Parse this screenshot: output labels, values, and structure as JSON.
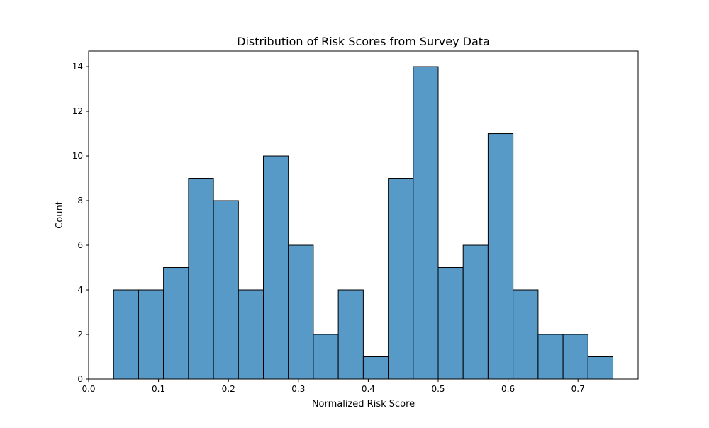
{
  "chart_data": {
    "type": "bar",
    "title": "Distribution of Risk Scores from Survey Data",
    "xlabel": "Normalized Risk Score",
    "ylabel": "Count",
    "xlim": [
      0.0,
      0.786
    ],
    "ylim": [
      0,
      14.7
    ],
    "grid": false,
    "bar_color": "#5799c7",
    "edge_color": "#000000",
    "bin_width": 0.0357,
    "bins": [
      {
        "x0": 0.0357,
        "x1": 0.0714,
        "count": 4
      },
      {
        "x0": 0.0714,
        "x1": 0.1071,
        "count": 4
      },
      {
        "x0": 0.1071,
        "x1": 0.1429,
        "count": 5
      },
      {
        "x0": 0.1429,
        "x1": 0.1786,
        "count": 9
      },
      {
        "x0": 0.1786,
        "x1": 0.2143,
        "count": 8
      },
      {
        "x0": 0.2143,
        "x1": 0.25,
        "count": 4
      },
      {
        "x0": 0.25,
        "x1": 0.2857,
        "count": 10
      },
      {
        "x0": 0.2857,
        "x1": 0.3214,
        "count": 6
      },
      {
        "x0": 0.3214,
        "x1": 0.3571,
        "count": 2
      },
      {
        "x0": 0.3571,
        "x1": 0.3929,
        "count": 4
      },
      {
        "x0": 0.3929,
        "x1": 0.4286,
        "count": 1
      },
      {
        "x0": 0.4286,
        "x1": 0.4643,
        "count": 9
      },
      {
        "x0": 0.4643,
        "x1": 0.5,
        "count": 14
      },
      {
        "x0": 0.5,
        "x1": 0.5357,
        "count": 5
      },
      {
        "x0": 0.5357,
        "x1": 0.5714,
        "count": 6
      },
      {
        "x0": 0.5714,
        "x1": 0.6071,
        "count": 11
      },
      {
        "x0": 0.6071,
        "x1": 0.6429,
        "count": 4
      },
      {
        "x0": 0.6429,
        "x1": 0.6786,
        "count": 2
      },
      {
        "x0": 0.6786,
        "x1": 0.7143,
        "count": 2
      },
      {
        "x0": 0.7143,
        "x1": 0.75,
        "count": 1
      }
    ],
    "x_ticks": [
      {
        "value": 0.0,
        "label": "0.0"
      },
      {
        "value": 0.1,
        "label": "0.1"
      },
      {
        "value": 0.2,
        "label": "0.2"
      },
      {
        "value": 0.3,
        "label": "0.3"
      },
      {
        "value": 0.4,
        "label": "0.4"
      },
      {
        "value": 0.5,
        "label": "0.5"
      },
      {
        "value": 0.6,
        "label": "0.6"
      },
      {
        "value": 0.7,
        "label": "0.7"
      }
    ],
    "y_ticks": [
      {
        "value": 0,
        "label": "0"
      },
      {
        "value": 2,
        "label": "2"
      },
      {
        "value": 4,
        "label": "4"
      },
      {
        "value": 6,
        "label": "6"
      },
      {
        "value": 8,
        "label": "8"
      },
      {
        "value": 10,
        "label": "10"
      },
      {
        "value": 12,
        "label": "12"
      },
      {
        "value": 14,
        "label": "14"
      }
    ]
  }
}
